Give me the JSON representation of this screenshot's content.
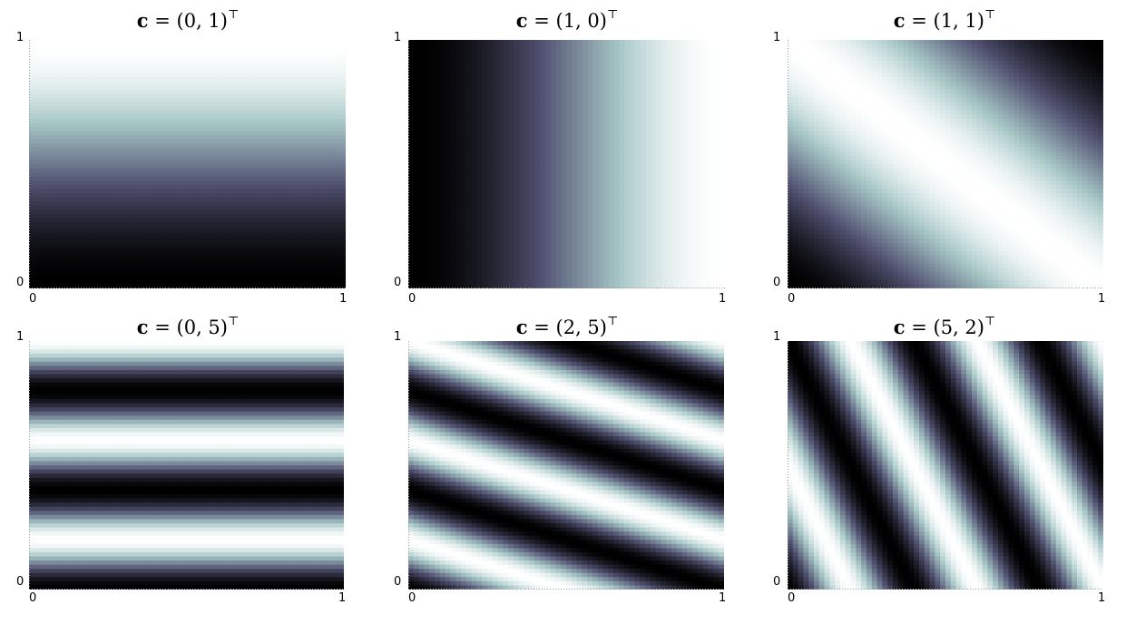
{
  "chart_data": [
    {
      "type": "heatmap",
      "title": "c = (0, 1)",
      "title_bold": "c",
      "title_rest": " = (0, 1)",
      "superscript": "⊤",
      "c": [
        0,
        1
      ],
      "xlim": [
        0,
        1
      ],
      "ylim": [
        0,
        1
      ],
      "xticks": [
        "0",
        "1"
      ],
      "yticks": [
        "0",
        "1"
      ],
      "colormap": "bone"
    },
    {
      "type": "heatmap",
      "title": "c = (1, 0)",
      "title_bold": "c",
      "title_rest": " = (1, 0)",
      "superscript": "⊤",
      "c": [
        1,
        0
      ],
      "xlim": [
        0,
        1
      ],
      "ylim": [
        0,
        1
      ],
      "xticks": [
        "0",
        "1"
      ],
      "yticks": [
        "0",
        "1"
      ],
      "colormap": "bone"
    },
    {
      "type": "heatmap",
      "title": "c = (1, 1)",
      "title_bold": "c",
      "title_rest": " = (1, 1)",
      "superscript": "⊤",
      "c": [
        1,
        1
      ],
      "xlim": [
        0,
        1
      ],
      "ylim": [
        0,
        1
      ],
      "xticks": [
        "0",
        "1"
      ],
      "yticks": [
        "0",
        "1"
      ],
      "colormap": "bone"
    },
    {
      "type": "heatmap",
      "title": "c = (0, 5)",
      "title_bold": "c",
      "title_rest": " = (0, 5)",
      "superscript": "⊤",
      "c": [
        0,
        5
      ],
      "xlim": [
        0,
        1
      ],
      "ylim": [
        0,
        1
      ],
      "xticks": [
        "0",
        "1"
      ],
      "yticks": [
        "0",
        "1"
      ],
      "colormap": "bone"
    },
    {
      "type": "heatmap",
      "title": "c = (2, 5)",
      "title_bold": "c",
      "title_rest": " = (2, 5)",
      "superscript": "⊤",
      "c": [
        2,
        5
      ],
      "xlim": [
        0,
        1
      ],
      "ylim": [
        0,
        1
      ],
      "xticks": [
        "0",
        "1"
      ],
      "yticks": [
        "0",
        "1"
      ],
      "colormap": "bone"
    },
    {
      "type": "heatmap",
      "title": "c = (5, 2)",
      "title_bold": "c",
      "title_rest": " = (5, 2)",
      "superscript": "⊤",
      "c": [
        5,
        2
      ],
      "xlim": [
        0,
        1
      ],
      "ylim": [
        0,
        1
      ],
      "xticks": [
        "0",
        "1"
      ],
      "yticks": [
        "0",
        "1"
      ],
      "colormap": "bone"
    }
  ]
}
